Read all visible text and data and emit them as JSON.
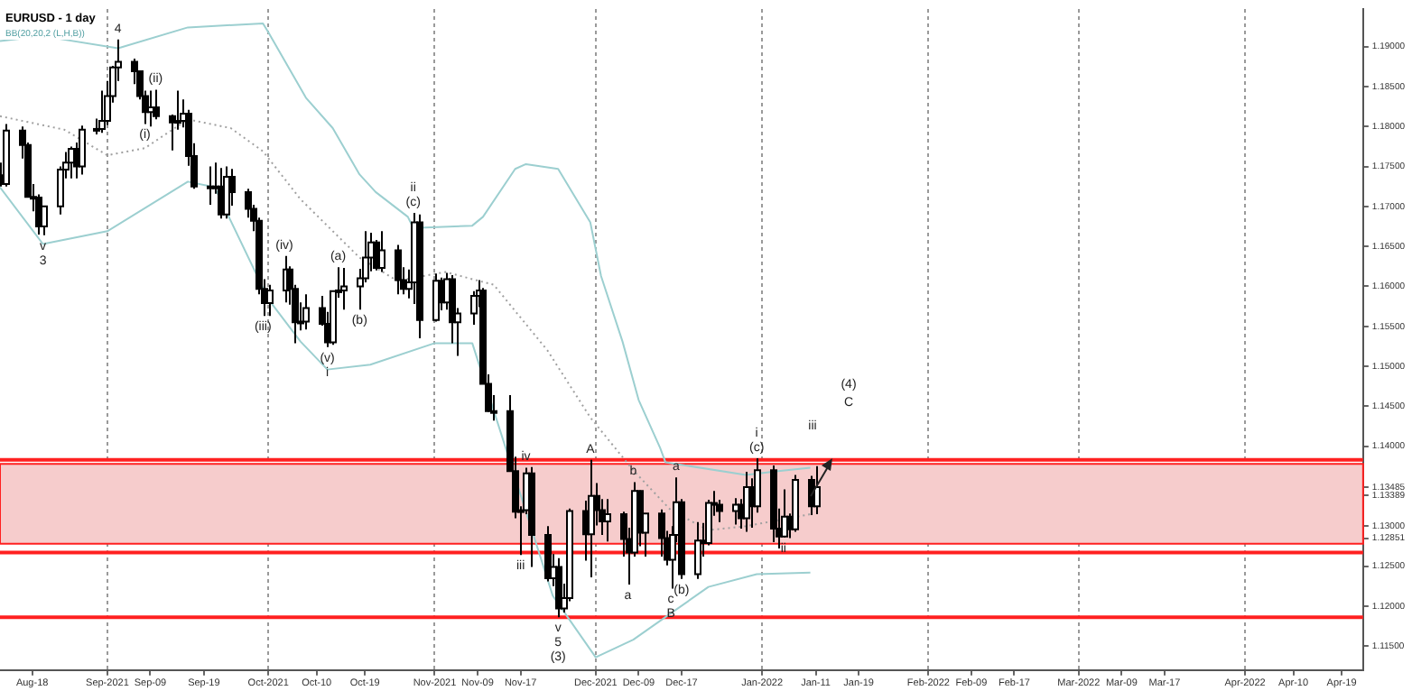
{
  "chart_data": {
    "type": "candlestick",
    "title": "EURUSD - 1 day",
    "subtitle": "BB(20,20,2 (L,H,B))",
    "x": [
      "2021-08-12",
      "2021-08-13",
      "2021-08-16",
      "2021-08-17",
      "2021-08-18",
      "2021-08-19",
      "2021-08-20",
      "2021-08-23",
      "2021-08-24",
      "2021-08-25",
      "2021-08-26",
      "2021-08-27",
      "2021-08-30",
      "2021-08-31",
      "2021-09-01",
      "2021-09-02",
      "2021-09-03",
      "2021-09-06",
      "2021-09-07",
      "2021-09-08",
      "2021-09-09",
      "2021-09-10",
      "2021-09-13",
      "2021-09-14",
      "2021-09-15",
      "2021-09-16",
      "2021-09-17",
      "2021-09-20",
      "2021-09-21",
      "2021-09-22",
      "2021-09-23",
      "2021-09-24",
      "2021-09-27",
      "2021-09-28",
      "2021-09-29",
      "2021-09-30",
      "2021-10-01",
      "2021-10-04",
      "2021-10-05",
      "2021-10-06",
      "2021-10-07",
      "2021-10-08",
      "2021-10-11",
      "2021-10-12",
      "2021-10-13",
      "2021-10-14",
      "2021-10-15",
      "2021-10-18",
      "2021-10-19",
      "2021-10-20",
      "2021-10-21",
      "2021-10-22",
      "2021-10-25",
      "2021-10-26",
      "2021-10-27",
      "2021-10-28",
      "2021-10-29",
      "2021-11-01",
      "2021-11-02",
      "2021-11-03",
      "2021-11-04",
      "2021-11-05",
      "2021-11-08",
      "2021-11-09",
      "2021-11-10",
      "2021-11-11",
      "2021-11-12",
      "2021-11-15",
      "2021-11-16",
      "2021-11-17",
      "2021-11-18",
      "2021-11-19",
      "2021-11-22",
      "2021-11-23",
      "2021-11-24",
      "2021-11-25",
      "2021-11-26",
      "2021-11-29",
      "2021-11-30",
      "2021-12-01",
      "2021-12-02",
      "2021-12-03",
      "2021-12-06",
      "2021-12-07",
      "2021-12-08",
      "2021-12-09",
      "2021-12-10",
      "2021-12-13",
      "2021-12-14",
      "2021-12-15",
      "2021-12-16",
      "2021-12-17",
      "2021-12-20",
      "2021-12-21",
      "2021-12-22",
      "2021-12-23",
      "2021-12-24",
      "2021-12-27",
      "2021-12-28",
      "2021-12-29",
      "2021-12-30",
      "2021-12-31",
      "2022-01-03",
      "2022-01-04",
      "2022-01-05",
      "2022-01-06",
      "2022-01-07",
      "2022-01-10",
      "2022-01-11"
    ],
    "ohlc": [
      [
        1.1739,
        1.1755,
        1.1725,
        1.1728
      ],
      [
        1.1728,
        1.1803,
        1.1725,
        1.1795
      ],
      [
        1.1795,
        1.18,
        1.176,
        1.1777
      ],
      [
        1.1777,
        1.178,
        1.1712,
        1.1712
      ],
      [
        1.1712,
        1.1728,
        1.1694,
        1.1711
      ],
      [
        1.1711,
        1.1715,
        1.1665,
        1.1675
      ],
      [
        1.1675,
        1.1701,
        1.1664,
        1.17
      ],
      [
        1.17,
        1.175,
        1.169,
        1.1746
      ],
      [
        1.1746,
        1.1768,
        1.1735,
        1.1755
      ],
      [
        1.1755,
        1.1775,
        1.1735,
        1.1772
      ],
      [
        1.1772,
        1.178,
        1.1735,
        1.175
      ],
      [
        1.175,
        1.1801,
        1.174,
        1.1796
      ],
      [
        1.1796,
        1.181,
        1.179,
        1.1797
      ],
      [
        1.1797,
        1.1845,
        1.1792,
        1.1807
      ],
      [
        1.1807,
        1.1857,
        1.1802,
        1.1838
      ],
      [
        1.1838,
        1.1876,
        1.183,
        1.1874
      ],
      [
        1.1874,
        1.1909,
        1.1857,
        1.1881
      ],
      [
        1.1881,
        1.1885,
        1.1853,
        1.1869
      ],
      [
        1.1869,
        1.187,
        1.1834,
        1.1838
      ],
      [
        1.1838,
        1.1845,
        1.1803,
        1.1818
      ],
      [
        1.1818,
        1.1845,
        1.18,
        1.1824
      ],
      [
        1.1824,
        1.1846,
        1.1809,
        1.1813
      ],
      [
        1.1813,
        1.1815,
        1.177,
        1.1805
      ],
      [
        1.1805,
        1.1845,
        1.1796,
        1.1807
      ],
      [
        1.1807,
        1.1834,
        1.1799,
        1.1816
      ],
      [
        1.1816,
        1.1821,
        1.1751,
        1.1763
      ],
      [
        1.1763,
        1.1779,
        1.1722,
        1.1725
      ],
      [
        1.1725,
        1.175,
        1.1702,
        1.1725
      ],
      [
        1.1725,
        1.1755,
        1.1716,
        1.1725
      ],
      [
        1.1725,
        1.1748,
        1.1685,
        1.169
      ],
      [
        1.169,
        1.175,
        1.1685,
        1.1737
      ],
      [
        1.1737,
        1.1747,
        1.1701,
        1.1718
      ],
      [
        1.1718,
        1.1722,
        1.1686,
        1.1697
      ],
      [
        1.1697,
        1.1702,
        1.1669,
        1.1682
      ],
      [
        1.1682,
        1.1686,
        1.159,
        1.1597
      ],
      [
        1.1597,
        1.1609,
        1.1563,
        1.1579
      ],
      [
        1.1579,
        1.1602,
        1.1563,
        1.1595
      ],
      [
        1.1595,
        1.1638,
        1.158,
        1.1621
      ],
      [
        1.1621,
        1.1625,
        1.1577,
        1.1597
      ],
      [
        1.1597,
        1.1602,
        1.1529,
        1.1555
      ],
      [
        1.1555,
        1.158,
        1.1545,
        1.1556
      ],
      [
        1.1556,
        1.159,
        1.1546,
        1.1573
      ],
      [
        1.1573,
        1.1588,
        1.1551,
        1.1553
      ],
      [
        1.1553,
        1.1568,
        1.1524,
        1.153
      ],
      [
        1.153,
        1.1595,
        1.1527,
        1.1594
      ],
      [
        1.1594,
        1.1624,
        1.1586,
        1.1595
      ],
      [
        1.1595,
        1.1623,
        1.1571,
        1.16
      ],
      [
        1.16,
        1.1622,
        1.1571,
        1.161
      ],
      [
        1.161,
        1.1669,
        1.1605,
        1.1636
      ],
      [
        1.1636,
        1.1667,
        1.1619,
        1.1655
      ],
      [
        1.1655,
        1.1658,
        1.162,
        1.1623
      ],
      [
        1.1623,
        1.1669,
        1.1618,
        1.1645
      ],
      [
        1.1645,
        1.1652,
        1.159,
        1.1608
      ],
      [
        1.1608,
        1.1624,
        1.159,
        1.1597
      ],
      [
        1.1597,
        1.1621,
        1.1585,
        1.1605
      ],
      [
        1.1605,
        1.1692,
        1.1578,
        1.168
      ],
      [
        1.168,
        1.169,
        1.1535,
        1.1558
      ],
      [
        1.1558,
        1.1616,
        1.1556,
        1.1607
      ],
      [
        1.1607,
        1.1611,
        1.157,
        1.158
      ],
      [
        1.158,
        1.1617,
        1.1571,
        1.1609
      ],
      [
        1.1609,
        1.1614,
        1.1529,
        1.1555
      ],
      [
        1.1555,
        1.1573,
        1.1513,
        1.1566
      ],
      [
        1.1566,
        1.1594,
        1.1552,
        1.1588
      ],
      [
        1.1588,
        1.1608,
        1.1574,
        1.1595
      ],
      [
        1.1595,
        1.1598,
        1.1478,
        1.1478
      ],
      [
        1.1478,
        1.149,
        1.1443,
        1.1444
      ],
      [
        1.1444,
        1.1464,
        1.1432,
        1.1444
      ],
      [
        1.1444,
        1.1464,
        1.1369,
        1.1369
      ],
      [
        1.1369,
        1.1387,
        1.131,
        1.1318
      ],
      [
        1.1318,
        1.1325,
        1.1264,
        1.132
      ],
      [
        1.132,
        1.1373,
        1.1315,
        1.1366
      ],
      [
        1.1366,
        1.1374,
        1.1249,
        1.1289
      ],
      [
        1.1289,
        1.13,
        1.1231,
        1.1235
      ],
      [
        1.1235,
        1.1265,
        1.1225,
        1.1249
      ],
      [
        1.1249,
        1.126,
        1.1186,
        1.1197
      ],
      [
        1.1197,
        1.1228,
        1.1192,
        1.121
      ],
      [
        1.121,
        1.1322,
        1.1206,
        1.1319
      ],
      [
        1.1319,
        1.1332,
        1.1257,
        1.129
      ],
      [
        1.129,
        1.1383,
        1.1236,
        1.1338
      ],
      [
        1.1338,
        1.1354,
        1.1301,
        1.132
      ],
      [
        1.132,
        1.1334,
        1.1289,
        1.1306
      ],
      [
        1.1306,
        1.1334,
        1.1281,
        1.1315
      ],
      [
        1.1315,
        1.1318,
        1.1262,
        1.1284
      ],
      [
        1.1284,
        1.1298,
        1.1227,
        1.1267
      ],
      [
        1.1267,
        1.1355,
        1.1262,
        1.1344
      ],
      [
        1.1344,
        1.1345,
        1.1275,
        1.1292
      ],
      [
        1.1292,
        1.1316,
        1.1262,
        1.1316
      ],
      [
        1.1316,
        1.1321,
        1.1262,
        1.1285
      ],
      [
        1.1285,
        1.1294,
        1.1251,
        1.1258
      ],
      [
        1.1258,
        1.13,
        1.1222,
        1.1289
      ],
      [
        1.1289,
        1.1361,
        1.128,
        1.133
      ],
      [
        1.133,
        1.1334,
        1.1234,
        1.124
      ],
      [
        1.124,
        1.1305,
        1.1234,
        1.1282
      ],
      [
        1.1282,
        1.1304,
        1.1262,
        1.1279
      ],
      [
        1.1279,
        1.1333,
        1.1276,
        1.1329
      ],
      [
        1.1329,
        1.1344,
        1.1313,
        1.1327
      ],
      [
        1.1327,
        1.1333,
        1.1305,
        1.1319
      ],
      [
        1.1319,
        1.1335,
        1.1302,
        1.1327
      ],
      [
        1.1327,
        1.1334,
        1.1297,
        1.131
      ],
      [
        1.131,
        1.1368,
        1.1293,
        1.1349
      ],
      [
        1.1349,
        1.136,
        1.1298,
        1.1325
      ],
      [
        1.1325,
        1.1385,
        1.1317,
        1.137
      ],
      [
        1.137,
        1.1376,
        1.128,
        1.1297
      ],
      [
        1.1297,
        1.1322,
        1.1272,
        1.1287
      ],
      [
        1.1287,
        1.1346,
        1.1286,
        1.1312
      ],
      [
        1.1312,
        1.1316,
        1.1285,
        1.1296
      ],
      [
        1.1296,
        1.1364,
        1.1293,
        1.1358
      ],
      [
        1.1358,
        1.1363,
        1.1314,
        1.1325
      ],
      [
        1.1325,
        1.1375,
        1.1315,
        1.1349
      ]
    ],
    "series": [
      {
        "type": "line",
        "color": "#9ccfd0",
        "x": [
          "2021-08-12",
          "2021-08-20",
          "2021-09-03",
          "2021-09-16",
          "2021-09-30",
          "2021-10-01",
          "2021-10-08",
          "2021-10-13",
          "2021-10-18",
          "2021-10-21",
          "2021-10-27",
          "2021-10-28",
          "2021-11-08",
          "2021-11-10",
          "2021-11-16",
          "2021-11-18",
          "2021-11-24",
          "2021-11-30",
          "2021-12-02",
          "2021-12-06",
          "2021-12-09",
          "2021-12-13",
          "2021-12-14",
          "2021-12-29",
          "2022-01-04",
          "2022-01-10"
        ],
        "values": [
          1.1907,
          1.1913,
          1.1898,
          1.1924,
          1.1929,
          1.1918,
          1.1836,
          1.1798,
          1.174,
          1.1718,
          1.1687,
          1.1673,
          1.1676,
          1.1687,
          1.1747,
          1.1753,
          1.1747,
          1.168,
          1.1613,
          1.1531,
          1.1458,
          1.1398,
          1.138,
          1.1364,
          1.1369,
          1.1373
        ]
      },
      {
        "type": "line",
        "color": "#a0a0a0",
        "line_style": "dotted",
        "x": [
          "2021-08-12",
          "2021-08-24",
          "2021-09-01",
          "2021-09-08",
          "2021-09-16",
          "2021-09-24",
          "2021-09-30",
          "2021-10-07",
          "2021-10-18",
          "2021-10-25",
          "2021-11-03",
          "2021-11-12",
          "2021-11-22",
          "2021-11-30",
          "2021-12-08",
          "2021-12-15",
          "2021-12-22",
          "2021-12-29",
          "2022-01-10"
        ],
        "values": [
          1.1813,
          1.1796,
          1.1764,
          1.1773,
          1.1809,
          1.1798,
          1.1769,
          1.1709,
          1.1636,
          1.1607,
          1.1618,
          1.1602,
          1.152,
          1.1436,
          1.137,
          1.132,
          1.1295,
          1.13,
          1.1315
        ]
      },
      {
        "type": "line",
        "color": "#9ccfd0",
        "x": [
          "2021-08-12",
          "2021-08-20",
          "2021-09-01",
          "2021-09-16",
          "2021-09-21",
          "2021-10-01",
          "2021-10-07",
          "2021-10-12",
          "2021-10-20",
          "2021-11-01",
          "2021-11-08",
          "2021-11-23",
          "2021-12-01",
          "2021-12-08",
          "2021-12-15",
          "2021-12-22",
          "2021-12-31",
          "2022-01-10"
        ],
        "values": [
          1.1724,
          1.1653,
          1.1669,
          1.1731,
          1.1724,
          1.1584,
          1.1531,
          1.1496,
          1.1502,
          1.1529,
          1.1529,
          1.1213,
          1.1136,
          1.1158,
          1.1191,
          1.1224,
          1.124,
          1.1242
        ]
      }
    ],
    "ref_lines": [
      {
        "axis": "y",
        "value": 1.1383,
        "color": "#ff2020"
      },
      {
        "axis": "y",
        "value": 1.1267,
        "color": "#ff2020"
      },
      {
        "axis": "y",
        "value": 1.1186,
        "color": "#ff2020"
      }
    ],
    "bands": [
      {
        "axis": "y",
        "from": 1.1278,
        "to": 1.1378,
        "color": "#f6cccc"
      }
    ],
    "annotations": [
      {
        "text": "4",
        "x": "2021-09-03",
        "y": 1.1909
      },
      {
        "text": "v",
        "x": "2021-08-20",
        "y": 1.1664
      },
      {
        "text": "3",
        "x": "2021-08-20",
        "y": 1.1664
      },
      {
        "text": "(ii)",
        "x": "2021-09-10",
        "y": 1.1846
      },
      {
        "text": "(i)",
        "x": "2021-09-08",
        "y": 1.1803
      },
      {
        "text": "(iii)",
        "x": "2021-09-30",
        "y": 1.1563
      },
      {
        "text": "(iv)",
        "x": "2021-10-04",
        "y": 1.1638
      },
      {
        "text": "(v)",
        "x": "2021-10-12",
        "y": 1.1524
      },
      {
        "text": "i",
        "x": "2021-10-12",
        "y": 1.1524
      },
      {
        "text": "(a)",
        "x": "2021-10-14",
        "y": 1.1624
      },
      {
        "text": "(b)",
        "x": "2021-10-18",
        "y": 1.1571
      },
      {
        "text": "(c)",
        "x": "2021-10-28",
        "y": 1.1692
      },
      {
        "text": "ii",
        "x": "2021-10-28",
        "y": 1.1692
      },
      {
        "text": "iv",
        "x": "2021-11-18",
        "y": 1.1373
      },
      {
        "text": "iii",
        "x": "2021-11-17",
        "y": 1.1264
      },
      {
        "text": "v",
        "x": "2021-11-24",
        "y": 1.1186
      },
      {
        "text": "5",
        "x": "2021-11-24",
        "y": 1.1186
      },
      {
        "text": "(3)",
        "x": "2021-11-24",
        "y": 1.1186
      },
      {
        "text": "A",
        "x": "2021-11-30",
        "y": 1.1383
      },
      {
        "text": "b",
        "x": "2021-12-08",
        "y": 1.1355
      },
      {
        "text": "a",
        "x": "2021-12-16",
        "y": 1.1361
      },
      {
        "text": "a",
        "x": "2021-12-07",
        "y": 1.1227
      },
      {
        "text": "c",
        "x": "2021-12-15",
        "y": 1.1222
      },
      {
        "text": "B",
        "x": "2021-12-15",
        "y": 1.1222
      },
      {
        "text": "(b)",
        "x": "2021-12-17",
        "y": 1.1234
      },
      {
        "text": "(c)",
        "x": "2021-12-31",
        "y": 1.1385
      },
      {
        "text": "i",
        "x": "2021-12-31",
        "y": 1.1385
      },
      {
        "text": "ii",
        "x": "2022-01-05",
        "y": 1.1286
      },
      "iii",
      "(4)",
      "C"
    ],
    "xlim": [
      "2021-08-12",
      "2022-04-23"
    ],
    "xticks": [
      {
        "value": "2021-08-18",
        "label": "Aug-18"
      },
      {
        "value": "2021-09-01",
        "label": "Sep-2021"
      },
      {
        "value": "2021-09-09",
        "label": "Sep-09"
      },
      {
        "value": "2021-09-19",
        "label": "Sep-19"
      },
      {
        "value": "2021-10-01",
        "label": "Oct-2021"
      },
      {
        "value": "2021-10-10",
        "label": "Oct-10"
      },
      {
        "value": "2021-10-19",
        "label": "Oct-19"
      },
      {
        "value": "2021-11-01",
        "label": "Nov-2021"
      },
      {
        "value": "2021-11-09",
        "label": "Nov-09"
      },
      {
        "value": "2021-11-17",
        "label": "Nov-17"
      },
      {
        "value": "2021-12-01",
        "label": "Dec-2021"
      },
      {
        "value": "2021-12-09",
        "label": "Dec-09"
      },
      {
        "value": "2021-12-17",
        "label": "Dec-17"
      },
      {
        "value": "2022-01-01",
        "label": "Jan-2022"
      },
      {
        "value": "2022-01-11",
        "label": "Jan-11"
      },
      {
        "value": "2022-01-19",
        "label": "Jan-19"
      },
      {
        "value": "2022-02-01",
        "label": "Feb-2022"
      },
      {
        "value": "2022-02-09",
        "label": "Feb-09"
      },
      {
        "value": "2022-02-17",
        "label": "Feb-17"
      },
      {
        "value": "2022-03-01",
        "label": "Mar-2022"
      },
      {
        "value": "2022-03-09",
        "label": "Mar-09"
      },
      {
        "value": "2022-03-17",
        "label": "Mar-17"
      },
      {
        "value": "2022-04-01",
        "label": "Apr-2022"
      },
      {
        "value": "2022-04-10",
        "label": "Apr-10"
      },
      {
        "value": "2022-04-19",
        "label": "Apr-19"
      }
    ],
    "ylim": [
      1.112,
      1.1947
    ],
    "yticks": [
      {
        "value": 1.115,
        "label": "1.11500"
      },
      {
        "value": 1.12,
        "label": "1.12000"
      },
      {
        "value": 1.125,
        "label": "1.12500"
      },
      {
        "value": 1.12851,
        "label": "1.12851"
      },
      {
        "value": 1.13,
        "label": "1.13000"
      },
      {
        "value": 1.13389,
        "label": "1.13389"
      },
      {
        "value": 1.13485,
        "label": "1.13485"
      },
      {
        "value": 1.14,
        "label": "1.14000"
      },
      {
        "value": 1.145,
        "label": "1.14500"
      },
      {
        "value": 1.15,
        "label": "1.15000"
      },
      {
        "value": 1.155,
        "label": "1.15500"
      },
      {
        "value": 1.16,
        "label": "1.16000"
      },
      {
        "value": 1.165,
        "label": "1.16500"
      },
      {
        "value": 1.17,
        "label": "1.17000"
      },
      {
        "value": 1.175,
        "label": "1.17500"
      },
      {
        "value": 1.18,
        "label": "1.18000"
      },
      {
        "value": 1.185,
        "label": "1.18500"
      },
      {
        "value": 1.19,
        "label": "1.19000"
      }
    ],
    "grid": "x",
    "legend": false,
    "marker": "none"
  }
}
